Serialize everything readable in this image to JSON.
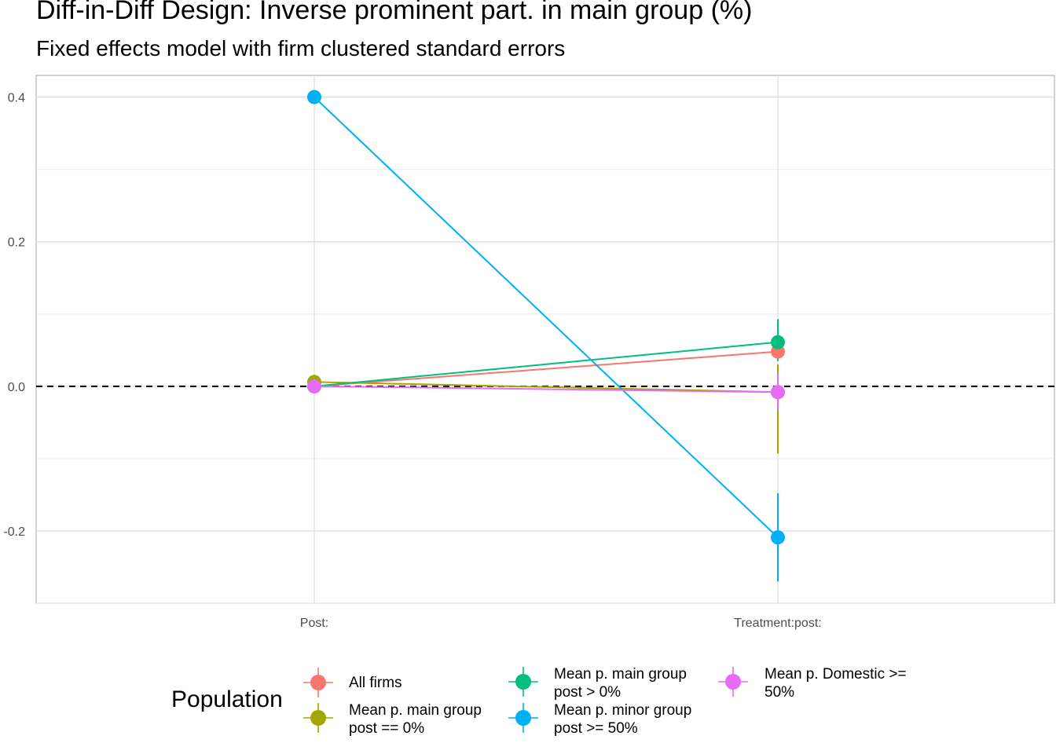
{
  "chart_data": {
    "type": "scatter",
    "title": "Diff-in-Diff Design: Inverse prominent part. in main group (%)",
    "subtitle": "Fixed effects model with firm clustered standard errors",
    "xlabel": "",
    "ylabel": "",
    "categories": [
      "Post:",
      "Treatment:post:"
    ],
    "ylim": [
      -0.3,
      0.43
    ],
    "yticks": [
      -0.2,
      0.0,
      0.2,
      0.4
    ],
    "ytick_labels": [
      "-0.2",
      "0.0",
      "0.2",
      "0.4"
    ],
    "reference_line": {
      "y": 0,
      "style": "dashed",
      "color": "#000000"
    },
    "grid": true,
    "legend": {
      "title": "Population",
      "placement": "bottom",
      "entries": [
        "All firms",
        "Mean p. main group post == 0%",
        "Mean p. main group post > 0%",
        "Mean p. minor group post >= 50%",
        "Mean p. Domestic >= 50%"
      ]
    },
    "series": [
      {
        "name": "All firms",
        "color": "#F8766D",
        "label": "All firms",
        "values": [
          0.0,
          0.048
        ],
        "ci_low": [
          null,
          null
        ],
        "ci_high": [
          null,
          null
        ]
      },
      {
        "name": "Mean p. main group post == 0%",
        "color": "#A3A500",
        "label": "Mean p. main group\npost == 0%",
        "values": [
          0.006,
          -0.008
        ],
        "ci_low": [
          null,
          -0.093
        ],
        "ci_high": [
          null,
          0.03
        ]
      },
      {
        "name": "Mean p. main group post > 0%",
        "color": "#00BF7D",
        "label": "Mean p. main group\npost > 0%",
        "values": [
          0.0,
          0.061
        ],
        "ci_low": [
          null,
          0.035
        ],
        "ci_high": [
          null,
          0.093
        ]
      },
      {
        "name": "Mean p. minor group post >= 50%",
        "color": "#00B0F6",
        "label": "Mean p. minor group\npost >= 50%",
        "values": [
          0.4,
          -0.209
        ],
        "ci_low": [
          null,
          -0.27
        ],
        "ci_high": [
          null,
          -0.148
        ]
      },
      {
        "name": "Mean p. Domestic >= 50%",
        "color": "#E76BF3",
        "label": "Mean p. Domestic >=\n50%",
        "values": [
          0.0,
          -0.008
        ],
        "ci_low": [
          null,
          -0.033
        ],
        "ci_high": [
          null,
          0.018
        ]
      }
    ]
  }
}
